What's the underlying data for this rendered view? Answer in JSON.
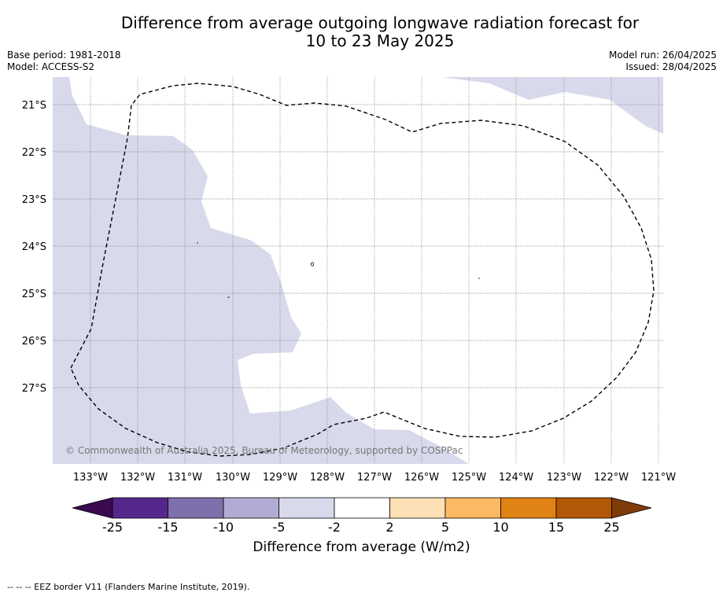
{
  "title_line1": "Difference from average outgoing longwave radiation forecast for",
  "title_line2": "10 to 23 May 2025",
  "base_period": "Base period: 1981-2018",
  "model": "Model: ACCESS-S2",
  "model_run": "Model run: 26/04/2025",
  "issued": "Issued: 28/04/2025",
  "copyright": "© Commonwealth of Australia 2025, Bureau of Meteorology, supported by COSPPac",
  "colorbar_label": "Difference from average (W/m2)",
  "footer": "--  --  -- EEZ border V11 (Flanders Marine Institute, 2019).",
  "lat_labels": [
    "21°S",
    "22°S",
    "23°S",
    "24°S",
    "25°S",
    "26°S",
    "27°S"
  ],
  "lon_labels": [
    "133°W",
    "132°W",
    "131°W",
    "130°W",
    "129°W",
    "128°W",
    "127°W",
    "126°W",
    "125°W",
    "124°W",
    "123°W",
    "122°W",
    "121°W"
  ],
  "colorbar_ticks": [
    "-25",
    "-15",
    "-10",
    "-5",
    "-2",
    "2",
    "5",
    "10",
    "15",
    "25"
  ],
  "colorbar_colors": [
    "#3b0a4f",
    "#55278c",
    "#7f6fab",
    "#b2abd3",
    "#d8d9ea",
    "#ffffff",
    "#fee0b6",
    "#fdb863",
    "#e08214",
    "#b35806",
    "#7f3b08"
  ],
  "map_fill_color": "#d8d9ea"
}
